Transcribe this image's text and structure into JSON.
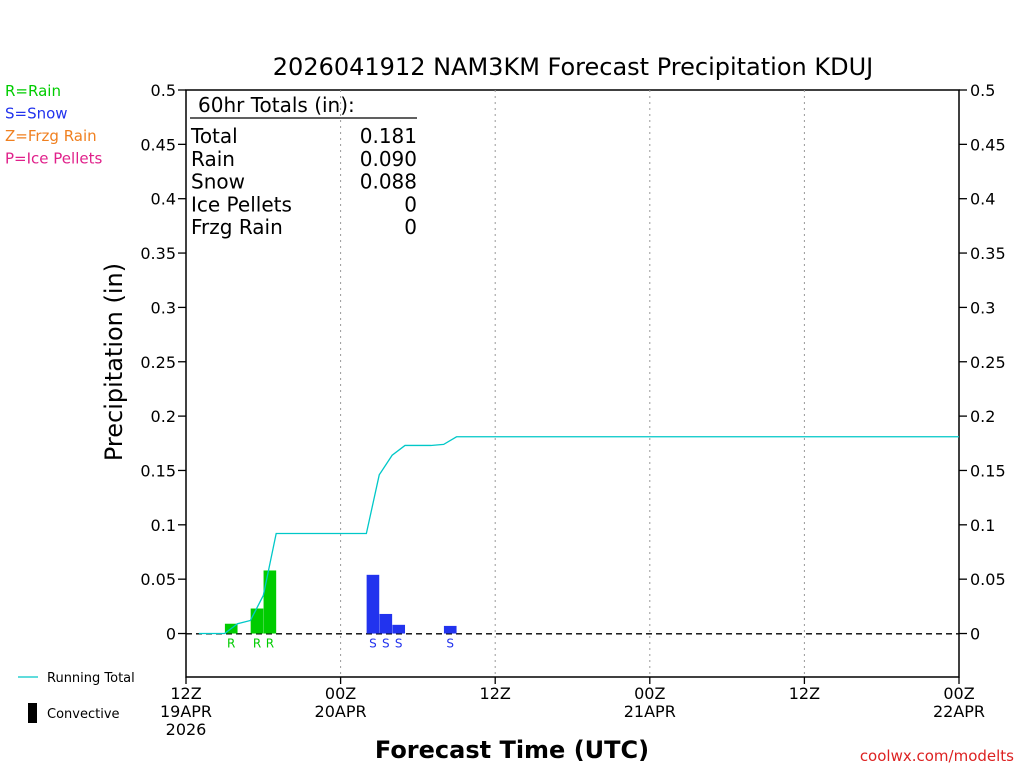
{
  "chart_data": {
    "type": "bar",
    "title": "2026041912 NAM3KM Forecast Precipitation KDUJ",
    "xlabel": "Forecast Time (UTC)",
    "ylabel": "Precipitation (in)",
    "ylim": [
      -0.04,
      0.5
    ],
    "y_ticks": [
      "0.5",
      "0.45",
      "0.4",
      "0.35",
      "0.3",
      "0.25",
      "0.2",
      "0.15",
      "0.1",
      "0.05",
      "0"
    ],
    "y_tick_values": [
      0.5,
      0.45,
      0.4,
      0.35,
      0.3,
      0.25,
      0.2,
      0.15,
      0.1,
      0.05,
      0
    ],
    "xlim_hours": [
      0,
      60
    ],
    "x_ticks": [
      {
        "hour": 0,
        "lines": [
          "12Z",
          "19APR",
          "2026"
        ]
      },
      {
        "hour": 12,
        "lines": [
          "00Z",
          "20APR"
        ]
      },
      {
        "hour": 24,
        "lines": [
          "12Z"
        ]
      },
      {
        "hour": 36,
        "lines": [
          "00Z",
          "21APR"
        ]
      },
      {
        "hour": 48,
        "lines": [
          "12Z"
        ]
      },
      {
        "hour": 60,
        "lines": [
          "00Z",
          "22APR"
        ]
      }
    ],
    "grid_hours": [
      12,
      24,
      36,
      48
    ],
    "bars": [
      {
        "hour": 4,
        "value": 0.009,
        "type": "R"
      },
      {
        "hour": 6,
        "value": 0.023,
        "type": "R"
      },
      {
        "hour": 7,
        "value": 0.058,
        "type": "R"
      },
      {
        "hour": 15,
        "value": 0.054,
        "type": "S"
      },
      {
        "hour": 16,
        "value": 0.018,
        "type": "S"
      },
      {
        "hour": 17,
        "value": 0.008,
        "type": "S"
      },
      {
        "hour": 21,
        "value": 0.007,
        "type": "S"
      }
    ],
    "running_total": {
      "name": "Running Total",
      "x": [
        1,
        2,
        3,
        4,
        5,
        6,
        7,
        8,
        9,
        10,
        11,
        12,
        13,
        14,
        15,
        16,
        17,
        18,
        19,
        20,
        21,
        22,
        60
      ],
      "y": [
        0,
        0,
        0,
        0.009,
        0.012,
        0.035,
        0.092,
        0.092,
        0.092,
        0.092,
        0.092,
        0.092,
        0.092,
        0.092,
        0.146,
        0.164,
        0.173,
        0.173,
        0.173,
        0.174,
        0.181,
        0.181,
        0.181
      ]
    },
    "totals_box": {
      "heading": "60hr Totals (in):",
      "rows": [
        {
          "label": "Total",
          "value": "0.181"
        },
        {
          "label": "Rain",
          "value": "0.090"
        },
        {
          "label": "Snow",
          "value": "0.088"
        },
        {
          "label": "Ice Pellets",
          "value": "0"
        },
        {
          "label": "Frzg Rain",
          "value": "0"
        }
      ]
    },
    "legend": {
      "types": [
        {
          "code": "R",
          "text": "R=Rain",
          "color": "#00cc00"
        },
        {
          "code": "S",
          "text": "S=Snow",
          "color": "#2233ee"
        },
        {
          "code": "Z",
          "text": "Z=Frzg Rain",
          "color": "#f08020"
        },
        {
          "code": "P",
          "text": "P=Ice Pellets",
          "color": "#e0208a"
        }
      ],
      "running_total_label": "Running Total",
      "convective_label": "Convective"
    },
    "running_total_color": "#00c8c8",
    "credit": "coolwx.com/modelts",
    "credit_color": "#dd2222"
  }
}
